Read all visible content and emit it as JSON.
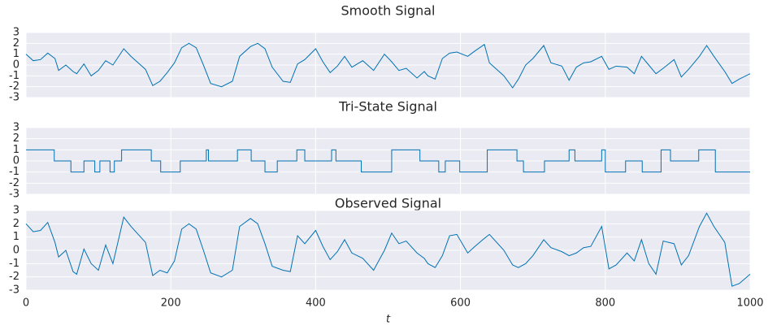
{
  "chart_data": [
    {
      "type": "line",
      "title": "Smooth Signal",
      "color": "#0072b2",
      "grid": true,
      "x": [
        0,
        10,
        20,
        30,
        40,
        45,
        55,
        65,
        70,
        80,
        90,
        100,
        110,
        120,
        135,
        145,
        155,
        165,
        175,
        185,
        195,
        205,
        215,
        225,
        235,
        245,
        255,
        270,
        285,
        295,
        310,
        320,
        330,
        340,
        355,
        365,
        375,
        385,
        400,
        410,
        420,
        430,
        440,
        450,
        465,
        480,
        495,
        505,
        515,
        525,
        540,
        550,
        555,
        565,
        575,
        585,
        595,
        610,
        620,
        633,
        640,
        660,
        672,
        680,
        690,
        700,
        715,
        725,
        740,
        750,
        760,
        770,
        780,
        795,
        805,
        815,
        830,
        840,
        850,
        860,
        870,
        880,
        895,
        905,
        915,
        930,
        940,
        950,
        965,
        975,
        985,
        1000
      ],
      "values": [
        1.0,
        0.4,
        0.5,
        1.1,
        0.6,
        -0.5,
        0.0,
        -0.6,
        -0.8,
        0.1,
        -1.0,
        -0.5,
        0.4,
        0.0,
        1.5,
        0.8,
        0.2,
        -0.4,
        -1.9,
        -1.5,
        -0.7,
        0.2,
        1.6,
        2.0,
        1.6,
        0.0,
        -1.7,
        -2.0,
        -1.5,
        0.8,
        1.7,
        2.0,
        1.5,
        -0.2,
        -1.5,
        -1.6,
        0.1,
        0.5,
        1.5,
        0.3,
        -0.7,
        -0.1,
        0.8,
        -0.2,
        0.4,
        -0.5,
        1.0,
        0.3,
        -0.5,
        -0.3,
        -1.2,
        -0.6,
        -1.0,
        -1.3,
        0.6,
        1.1,
        1.2,
        0.8,
        1.3,
        1.9,
        0.2,
        -1.0,
        -2.1,
        -1.3,
        0.0,
        0.6,
        1.8,
        0.2,
        -0.1,
        -1.4,
        -0.2,
        0.2,
        0.3,
        0.8,
        -0.4,
        -0.1,
        -0.2,
        -0.8,
        0.8,
        0.0,
        -0.8,
        -0.3,
        0.5,
        -1.1,
        -0.4,
        0.8,
        1.8,
        0.8,
        -0.6,
        -1.7,
        -1.3,
        -0.8
      ],
      "xlim": [
        0,
        1000
      ],
      "xticks": [
        0,
        200,
        400,
        600,
        800,
        1000
      ],
      "ylim": [
        -3,
        3
      ],
      "yticks": [
        -3,
        -2,
        -1,
        0,
        1,
        2,
        3
      ]
    },
    {
      "type": "step",
      "title": "Tri-State Signal",
      "color": "#0072b2",
      "grid": true,
      "x": [
        0,
        39,
        62,
        80,
        95,
        102,
        116,
        122,
        132,
        173,
        186,
        213,
        249,
        252,
        292,
        311,
        330,
        347,
        374,
        385,
        422,
        428,
        463,
        505,
        544,
        570,
        579,
        599,
        637,
        678,
        687,
        716,
        750,
        758,
        795,
        800,
        828,
        851,
        877,
        890,
        929,
        952,
        1000
      ],
      "values": [
        1,
        0,
        -1,
        0,
        -1,
        0,
        -1,
        0,
        1,
        0,
        -1,
        0,
        1,
        0,
        1,
        0,
        -1,
        0,
        1,
        0,
        1,
        0,
        -1,
        1,
        0,
        -1,
        0,
        -1,
        1,
        0,
        -1,
        0,
        1,
        0,
        1,
        -1,
        0,
        -1,
        1,
        0,
        1,
        -1,
        -1
      ],
      "xlim": [
        0,
        1000
      ],
      "xticks": [
        0,
        200,
        400,
        600,
        800,
        1000
      ],
      "ylim": [
        -3,
        3
      ],
      "yticks": [
        -3,
        -2,
        -1,
        0,
        1,
        2,
        3
      ]
    },
    {
      "type": "line",
      "title": "Observed Signal",
      "color": "#0072b2",
      "grid": true,
      "xlabel": "t",
      "x": [
        0,
        10,
        20,
        30,
        40,
        45,
        55,
        65,
        70,
        80,
        90,
        100,
        110,
        120,
        135,
        145,
        155,
        165,
        175,
        185,
        195,
        205,
        215,
        225,
        235,
        245,
        255,
        270,
        285,
        295,
        310,
        320,
        330,
        340,
        355,
        365,
        375,
        385,
        400,
        410,
        420,
        430,
        440,
        450,
        465,
        480,
        495,
        505,
        515,
        525,
        540,
        550,
        555,
        565,
        575,
        585,
        595,
        610,
        620,
        633,
        640,
        660,
        672,
        680,
        690,
        700,
        715,
        725,
        740,
        750,
        760,
        770,
        780,
        795,
        805,
        815,
        830,
        840,
        850,
        860,
        870,
        880,
        895,
        905,
        915,
        930,
        940,
        950,
        965,
        975,
        985,
        1000
      ],
      "values": [
        2.0,
        1.4,
        1.5,
        2.1,
        0.6,
        -0.5,
        0.0,
        -1.6,
        -1.8,
        0.1,
        -1.0,
        -1.5,
        0.4,
        -1.0,
        2.5,
        1.8,
        1.2,
        0.6,
        -1.9,
        -1.5,
        -1.7,
        -0.8,
        1.6,
        2.0,
        1.6,
        0.0,
        -1.7,
        -2.0,
        -1.5,
        1.8,
        2.4,
        2.0,
        0.5,
        -1.2,
        -1.5,
        -1.6,
        1.1,
        0.5,
        1.5,
        0.3,
        -0.7,
        -0.1,
        0.8,
        -0.2,
        -0.6,
        -1.5,
        0.0,
        1.3,
        0.5,
        0.7,
        -0.2,
        -0.6,
        -1.0,
        -1.3,
        -0.4,
        1.1,
        1.2,
        -0.2,
        0.3,
        0.9,
        1.2,
        0.0,
        -1.1,
        -1.3,
        -1.0,
        -0.4,
        0.8,
        0.2,
        -0.1,
        -0.4,
        -0.2,
        0.2,
        0.3,
        1.8,
        -1.4,
        -1.1,
        -0.2,
        -0.8,
        0.8,
        -1.0,
        -1.8,
        0.7,
        0.5,
        -1.1,
        -0.4,
        1.8,
        2.8,
        1.8,
        0.6,
        -2.7,
        -2.5,
        -1.8
      ],
      "xlim": [
        0,
        1000
      ],
      "xticks": [
        0,
        200,
        400,
        600,
        800,
        1000
      ],
      "ylim": [
        -3,
        3
      ],
      "yticks": [
        -3,
        -2,
        -1,
        0,
        1,
        2,
        3
      ]
    }
  ]
}
